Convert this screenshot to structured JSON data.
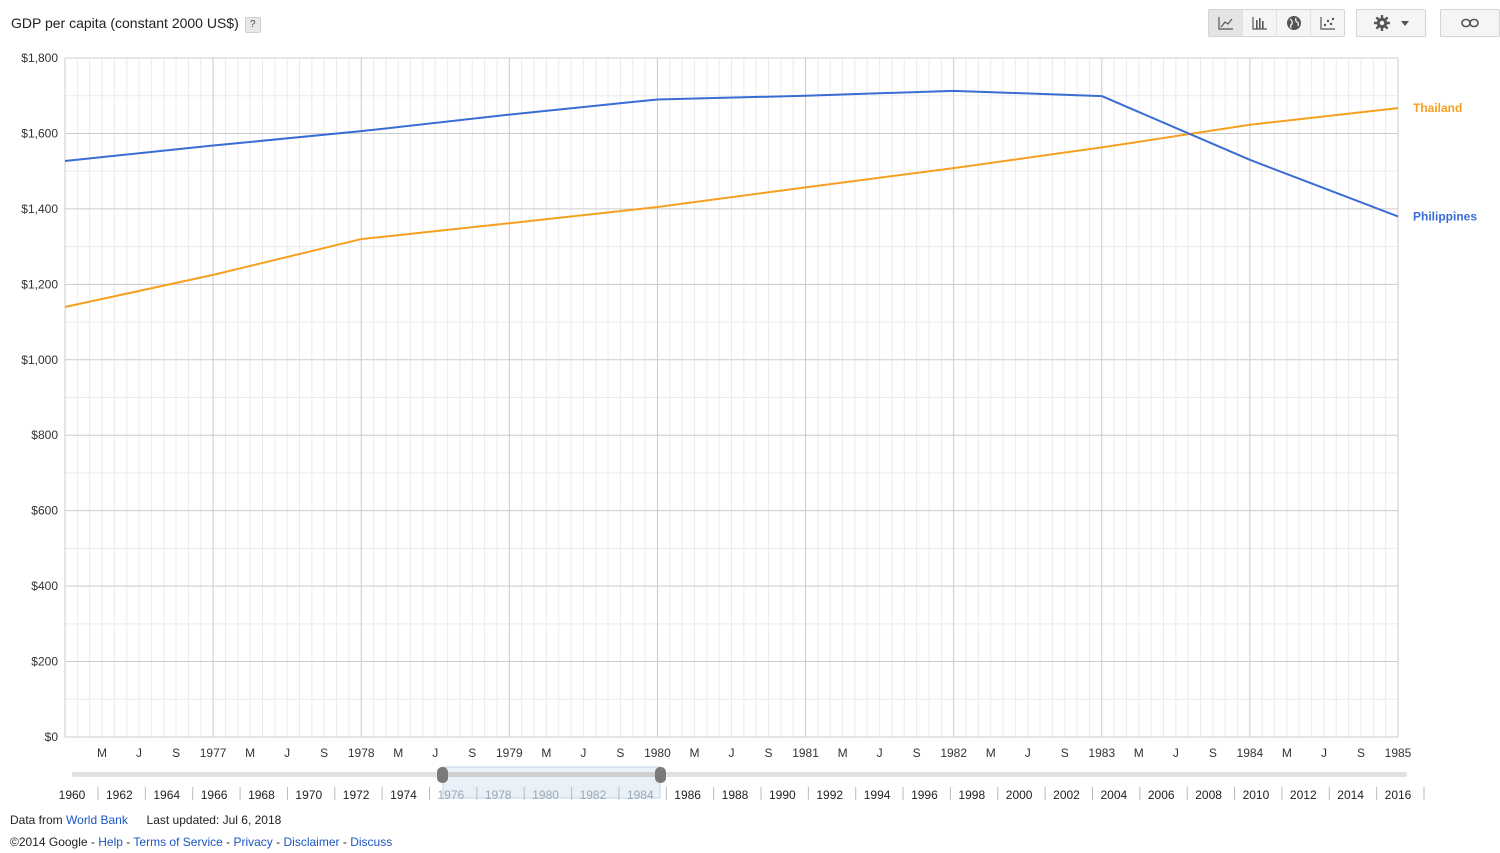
{
  "header": {
    "title": "GDP per capita (constant 2000 US$)",
    "help": "?"
  },
  "toolbar": {
    "buttons": [
      "line-chart-icon",
      "bar-chart-icon",
      "globe-icon",
      "scatter-icon"
    ],
    "active": "line-chart-icon",
    "settings_icon": "gear-icon",
    "dropdown_icon": "caret-down-icon",
    "link_icon": "link-icon"
  },
  "colors": {
    "thailand": "#f7a020",
    "philippines": "#3a6cd6",
    "grid_major": "#cccccc",
    "grid_minor": "#ebebeb"
  },
  "chart_data": {
    "type": "line",
    "title": "GDP per capita (constant 2000 US$)",
    "ylim": [
      0,
      1800
    ],
    "y_ticks": [
      "$1,800",
      "$1,600",
      "$1,400",
      "$1,200",
      "$1,000",
      "$800",
      "$600",
      "$400",
      "$200",
      "$0"
    ],
    "x_tick_labels": [
      "M",
      "J",
      "S",
      "1977",
      "M",
      "J",
      "S",
      "1978",
      "M",
      "J",
      "S",
      "1979",
      "M",
      "J",
      "S",
      "1980",
      "M",
      "J",
      "S",
      "1981",
      "M",
      "J",
      "S",
      "1982",
      "M",
      "J",
      "S",
      "1983",
      "M",
      "J",
      "S",
      "1984",
      "M",
      "J",
      "S",
      "1985"
    ],
    "x_range": [
      "1976",
      "1985"
    ],
    "grid": true,
    "legend": "right inline labels",
    "series": [
      {
        "name": "Thailand",
        "color": "#f7a020",
        "x": [
          1976,
          1977,
          1978,
          1979,
          1980,
          1981,
          1982,
          1983,
          1984,
          1985
        ],
        "values": [
          1140,
          1225,
          1320,
          1362,
          1405,
          1457,
          1508,
          1563,
          1623,
          1667
        ]
      },
      {
        "name": "Philippines",
        "color": "#3a6cd6",
        "x": [
          1976,
          1977,
          1978,
          1979,
          1980,
          1981,
          1982,
          1983,
          1984,
          1985
        ],
        "values": [
          1527,
          1568,
          1606,
          1650,
          1690,
          1700,
          1713,
          1699,
          1530,
          1380
        ]
      }
    ]
  },
  "timeline": {
    "labels": [
      "1960",
      "1962",
      "1964",
      "1966",
      "1968",
      "1970",
      "1972",
      "1974",
      "1976",
      "1978",
      "1980",
      "1982",
      "1984",
      "1986",
      "1988",
      "1990",
      "1992",
      "1994",
      "1996",
      "1998",
      "2000",
      "2002",
      "2004",
      "2006",
      "2008",
      "2010",
      "2012",
      "2014",
      "2016"
    ],
    "selected_start": "1976",
    "selected_end": "1985"
  },
  "footer": {
    "data_from_label": "Data from",
    "data_from_link": "World Bank",
    "last_updated": "Last updated: Jul 6, 2018",
    "copyright": "©2014 Google",
    "links": [
      "Help",
      "Terms of Service",
      "Privacy",
      "Disclaimer",
      "Discuss"
    ]
  }
}
